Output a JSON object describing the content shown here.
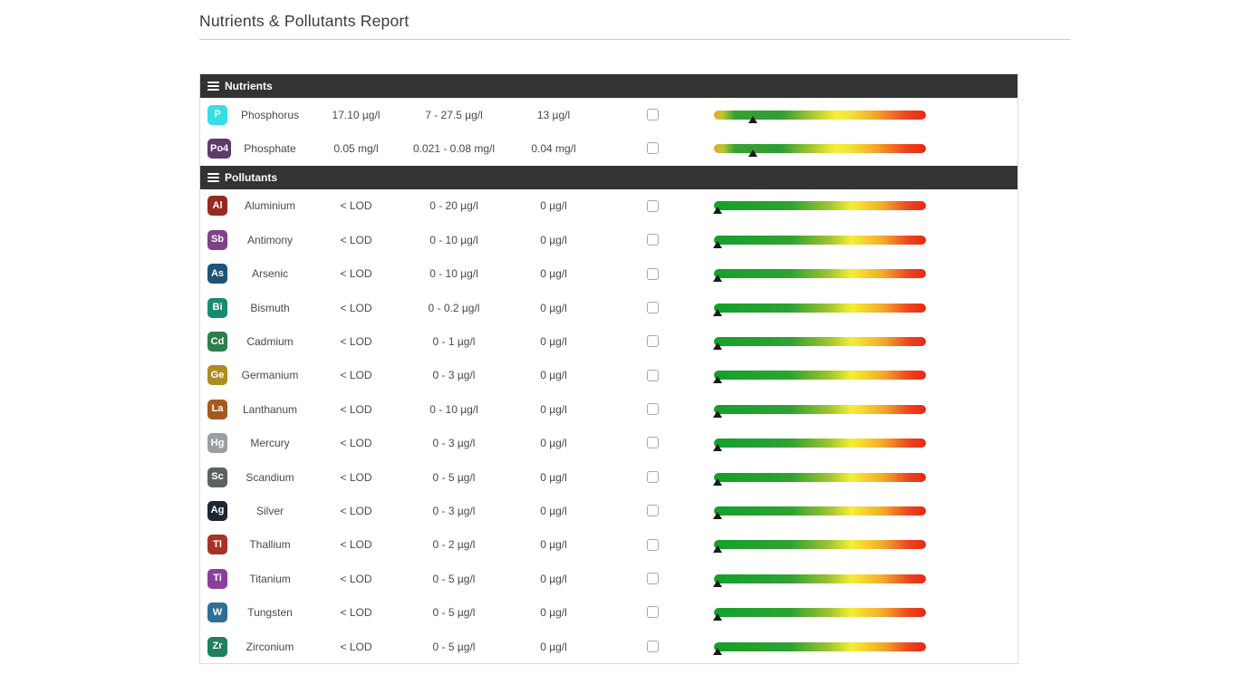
{
  "page": {
    "title": "Nutrients & Pollutants Report"
  },
  "table": {
    "sections": [
      {
        "label": "Nutrients",
        "icon": "list-icon",
        "rows": [
          {
            "symbol": "P",
            "badge_color": "#35dfe3",
            "name": "Phosphorus",
            "value": "17.10 µg/l",
            "range": "7 - 27.5 µg/l",
            "target": "13 µg/l",
            "checked": false,
            "bar": "nutrient",
            "marker_pct": 18.5
          },
          {
            "symbol": "Po4",
            "badge_color": "#5e3a68",
            "name": "Phosphate",
            "value": "0.05 mg/l",
            "range": "0.021 - 0.08 mg/l",
            "target": "0.04 mg/l",
            "checked": false,
            "bar": "nutrient",
            "marker_pct": 18.5
          }
        ]
      },
      {
        "label": "Pollutants",
        "icon": "list-icon",
        "rows": [
          {
            "symbol": "Al",
            "badge_color": "#962a22",
            "name": "Aluminium",
            "value": "< LOD",
            "range": "0 - 20 µg/l",
            "target": "0 µg/l",
            "checked": false,
            "bar": "pollutant",
            "marker_pct": 1.5
          },
          {
            "symbol": "Sb",
            "badge_color": "#7e4288",
            "name": "Antimony",
            "value": "< LOD",
            "range": "0 - 10 µg/l",
            "target": "0 µg/l",
            "checked": false,
            "bar": "pollutant",
            "marker_pct": 1.5
          },
          {
            "symbol": "As",
            "badge_color": "#1f5375",
            "name": "Arsenic",
            "value": "< LOD",
            "range": "0 - 10 µg/l",
            "target": "0 µg/l",
            "checked": false,
            "bar": "pollutant",
            "marker_pct": 1.5
          },
          {
            "symbol": "Bi",
            "badge_color": "#178a72",
            "name": "Bismuth",
            "value": "< LOD",
            "range": "0 - 0.2 µg/l",
            "target": "0 µg/l",
            "checked": false,
            "bar": "pollutant",
            "marker_pct": 1.5
          },
          {
            "symbol": "Cd",
            "badge_color": "#2c7e4c",
            "name": "Cadmium",
            "value": "< LOD",
            "range": "0 - 1 µg/l",
            "target": "0 µg/l",
            "checked": false,
            "bar": "pollutant",
            "marker_pct": 1.5
          },
          {
            "symbol": "Ge",
            "badge_color": "#ac8d24",
            "name": "Germanium",
            "value": "< LOD",
            "range": "0 - 3 µg/l",
            "target": "0 µg/l",
            "checked": false,
            "bar": "pollutant",
            "marker_pct": 1.5
          },
          {
            "symbol": "La",
            "badge_color": "#a55a22",
            "name": "Lanthanum",
            "value": "< LOD",
            "range": "0 - 10 µg/l",
            "target": "0 µg/l",
            "checked": false,
            "bar": "pollutant",
            "marker_pct": 1.5
          },
          {
            "symbol": "Hg",
            "badge_color": "#9aa0a2",
            "name": "Mercury",
            "value": "< LOD",
            "range": "0 - 3 µg/l",
            "target": "0 µg/l",
            "checked": false,
            "bar": "pollutant",
            "marker_pct": 1.5
          },
          {
            "symbol": "Sc",
            "badge_color": "#5c6264",
            "name": "Scandium",
            "value": "< LOD",
            "range": "0 - 5 µg/l",
            "target": "0 µg/l",
            "checked": false,
            "bar": "pollutant",
            "marker_pct": 1.5
          },
          {
            "symbol": "Ag",
            "badge_color": "#1d2633",
            "name": "Silver",
            "value": "< LOD",
            "range": "0 - 3 µg/l",
            "target": "0 µg/l",
            "checked": false,
            "bar": "pollutant",
            "marker_pct": 1.5
          },
          {
            "symbol": "Tl",
            "badge_color": "#a63327",
            "name": "Thallium",
            "value": "< LOD",
            "range": "0 - 2 µg/l",
            "target": "0 µg/l",
            "checked": false,
            "bar": "pollutant",
            "marker_pct": 1.5
          },
          {
            "symbol": "Ti",
            "badge_color": "#8b3f9b",
            "name": "Titanium",
            "value": "< LOD",
            "range": "0 - 5 µg/l",
            "target": "0 µg/l",
            "checked": false,
            "bar": "pollutant",
            "marker_pct": 1.5
          },
          {
            "symbol": "W",
            "badge_color": "#2f6f96",
            "name": "Tungsten",
            "value": "< LOD",
            "range": "0 - 5 µg/l",
            "target": "0 µg/l",
            "checked": false,
            "bar": "pollutant",
            "marker_pct": 1.5
          },
          {
            "symbol": "Zr",
            "badge_color": "#1f7f5f",
            "name": "Zirconium",
            "value": "< LOD",
            "range": "0 - 5 µg/l",
            "target": "0 µg/l",
            "checked": false,
            "bar": "pollutant",
            "marker_pct": 1.5
          }
        ]
      }
    ]
  }
}
